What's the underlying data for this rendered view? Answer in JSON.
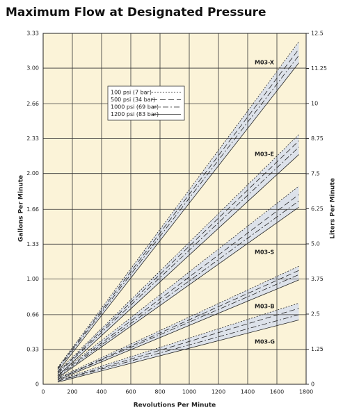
{
  "chart_data": {
    "type": "line",
    "title": "Maximum Flow at Designated Pressure",
    "x_label": "Revolutions Per Minute",
    "y_label": "Gallons Per Minute",
    "y2_label": "Liters Per Minute",
    "x": [
      100,
      1750
    ],
    "xlim": [
      0,
      1800
    ],
    "xticks": [
      0,
      200,
      400,
      600,
      800,
      1000,
      1200,
      1400,
      1600,
      1800
    ],
    "ylim": [
      0,
      3.33
    ],
    "yticks": [
      0,
      0.33,
      0.66,
      {
        "value": 1,
        "label": "1.00"
      },
      1.33,
      1.66,
      {
        "value": 2,
        "label": "2.00"
      },
      2.33,
      2.66,
      {
        "value": 3,
        "label": "3.00"
      },
      3.33
    ],
    "y2lim": [
      0,
      12.5
    ],
    "y2ticks": [
      0,
      1.25,
      2.5,
      3.75,
      {
        "value": 5,
        "label": "5.0"
      },
      6.25,
      7.5,
      8.75,
      10,
      11.25,
      12.5
    ],
    "grid": true,
    "pressures": [
      "100 psi (7 bar)",
      "500 psi (34 bar)",
      "1000 psi (69 bar)",
      "1200 psi (83 bar)"
    ],
    "pressure_dashes": [
      "2,2",
      "8,4",
      "8,3,2,3",
      "none"
    ],
    "line_color": "#222222",
    "band_color": "#dde2ea",
    "pumps": [
      {
        "name": "M03-X",
        "lines": [
          [
            0.16,
            3.25
          ],
          [
            0.15,
            3.18
          ],
          [
            0.14,
            3.12
          ],
          [
            0.12,
            3.05
          ]
        ]
      },
      {
        "name": "M03-E",
        "lines": [
          [
            0.12,
            2.37
          ],
          [
            0.11,
            2.31
          ],
          [
            0.1,
            2.25
          ],
          [
            0.08,
            2.18
          ]
        ]
      },
      {
        "name": "M03-S",
        "lines": [
          [
            0.09,
            1.88
          ],
          [
            0.08,
            1.8
          ],
          [
            0.07,
            1.74
          ],
          [
            0.06,
            1.68
          ]
        ]
      },
      {
        "name": "M03-B",
        "lines": [
          [
            0.06,
            1.12
          ],
          [
            0.05,
            1.08
          ],
          [
            0.05,
            1.04
          ],
          [
            0.04,
            0.99
          ]
        ]
      },
      {
        "name": "M03-G",
        "lines": [
          [
            0.04,
            0.77
          ],
          [
            0.03,
            0.72
          ],
          [
            0.03,
            0.66
          ],
          [
            0.02,
            0.61
          ]
        ]
      }
    ]
  }
}
